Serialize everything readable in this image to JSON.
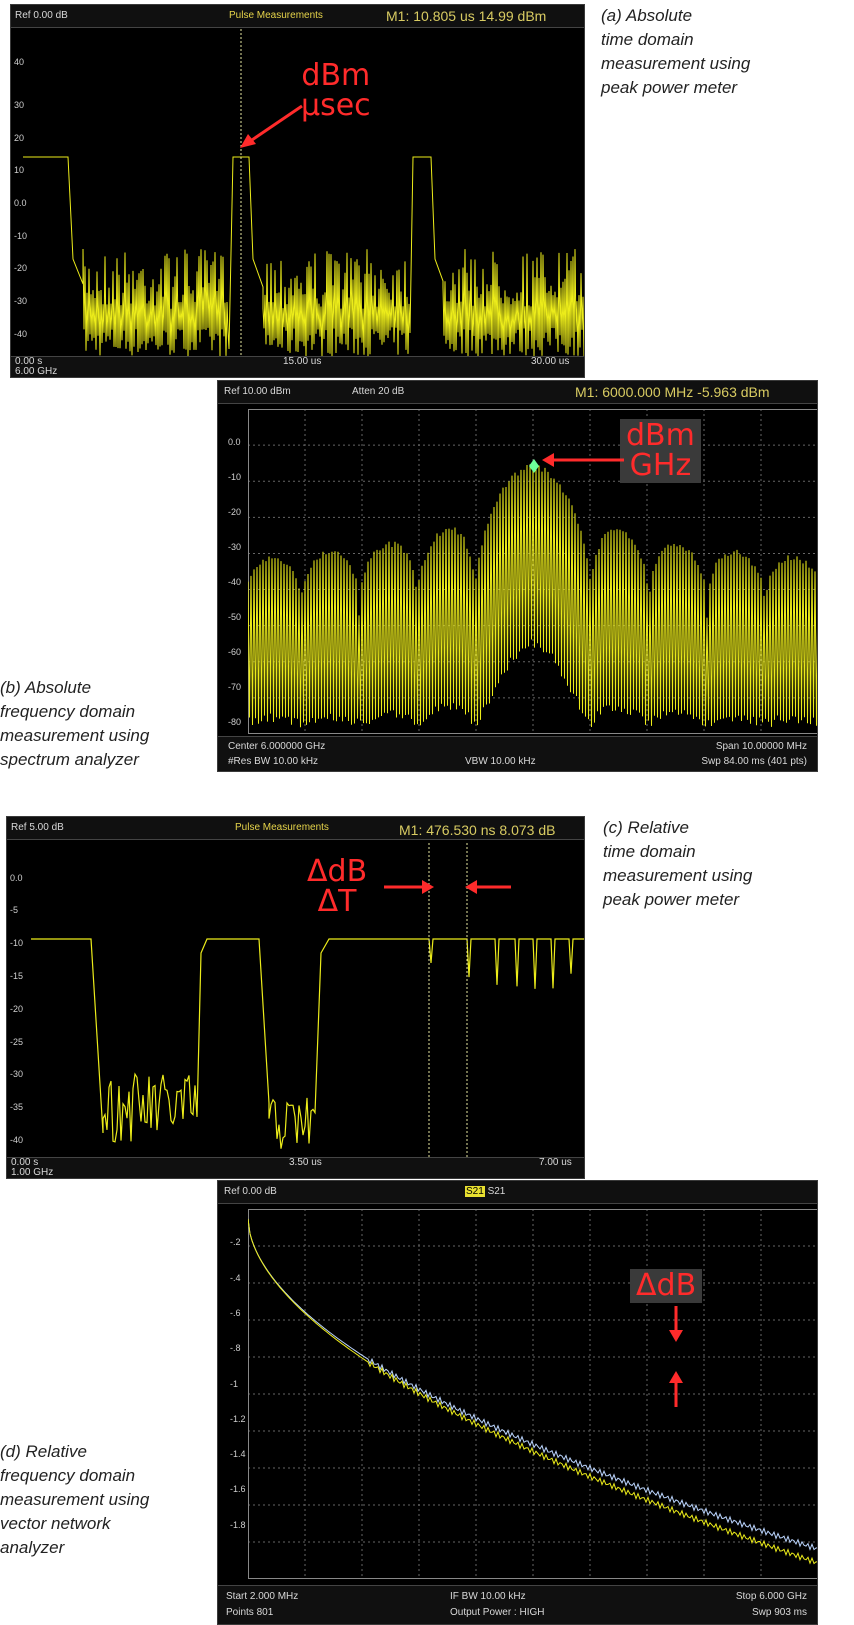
{
  "captions": {
    "a": "(a) Absolute\ntime domain\nmeasurement using\npeak power meter",
    "b": "(b) Absolute\nfrequency domain\nmeasurement using\nspectrum analyzer",
    "c": "(c) Relative\ntime domain\nmeasurement using\npeak power meter",
    "d": "(d) Relative\nfrequency domain\nmeasurement using\nvector network\nanalyzer"
  },
  "panel_a": {
    "ref": "Ref 0.00 dB",
    "title": "Pulse Measurements",
    "marker": "M1:  10.805 us   14.99 dBm",
    "y_ticks": [
      "40",
      "30",
      "20",
      "10",
      "0.0",
      "-10",
      "-20",
      "-30",
      "-40"
    ],
    "x_left": "0.00  s",
    "x_mid": "15.00 us",
    "x_right": "30.00 us",
    "freq": "6.00 GHz",
    "callout_line1": "dBm",
    "callout_line2": "µsec"
  },
  "panel_b": {
    "ref": "Ref 10.00 dBm",
    "atten": "Atten 20 dB",
    "marker": "M1:  6000.000 MHz  -5.963 dBm",
    "y_ticks": [
      "0.0",
      "-10",
      "-20",
      "-30",
      "-40",
      "-50",
      "-60",
      "-70",
      "-80"
    ],
    "center": "Center 6.000000 GHz",
    "span": "Span 10.00000 MHz",
    "rbw": "#Res BW 10.00 kHz",
    "vbw": "VBW 10.00 kHz",
    "swp": "Swp 84.00 ms (401 pts)",
    "callout_line1": "dBm",
    "callout_line2": "GHz"
  },
  "panel_c": {
    "ref": "Ref 5.00 dB",
    "title": "Pulse Measurements",
    "marker": "M1:  476.530 ns   8.073 dB",
    "y_ticks": [
      "0.0",
      "-5",
      "-10",
      "-15",
      "-20",
      "-25",
      "-30",
      "-35",
      "-40"
    ],
    "x_left": "0.00  s",
    "x_mid": "3.50 us",
    "x_right": "7.00 us",
    "freq": "1.00 GHz",
    "callout_line1": "ΔdB",
    "callout_line2": "ΔT"
  },
  "panel_d": {
    "ref": "Ref 0.00 dB",
    "trace_active": "S21",
    "trace_other": "S21",
    "y_ticks": [
      "-.2",
      "-.4",
      "-.6",
      "-.8",
      "-1",
      "-1.2",
      "-1.4",
      "-1.6",
      "-1.8"
    ],
    "start": "Start 2.000 MHz",
    "points": "Points 801",
    "ifbw": "IF BW 10.00 kHz",
    "power": "Output Power : HIGH",
    "stop": "Stop 6.000 GHz",
    "swp": "Swp 903 ms",
    "callout": "ΔdB"
  },
  "colors": {
    "trace_yellow": "#ecec1a",
    "trace_blue": "#bcd6ff",
    "callout_red": "#ff2b2b",
    "grid": "#666666"
  }
}
